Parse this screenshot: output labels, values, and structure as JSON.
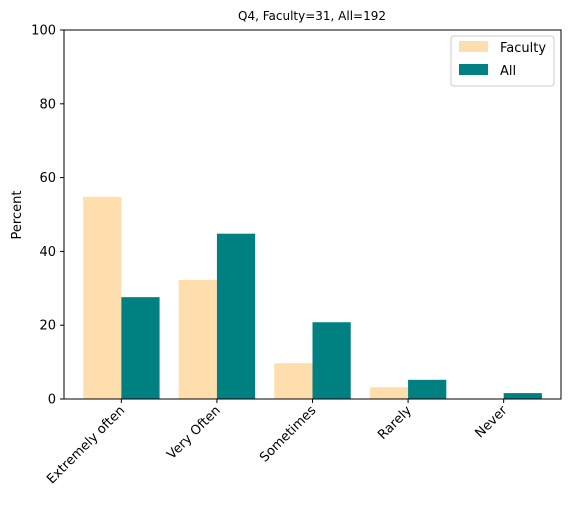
{
  "chart_data": {
    "type": "bar",
    "title": "Q4, Faculty=31, All=192",
    "xlabel": "",
    "ylabel": "Percent",
    "ylim": [
      0,
      100
    ],
    "yticks": [
      "0",
      "20",
      "40",
      "60",
      "80",
      "100"
    ],
    "categories": [
      "Extremely often",
      "Very Often",
      "Sometimes",
      "Rarely",
      "Never"
    ],
    "series": [
      {
        "name": "Faculty",
        "color": "#FFDEAD",
        "values": [
          54.8,
          32.3,
          9.7,
          3.2,
          0
        ]
      },
      {
        "name": "All",
        "color": "#008080",
        "values": [
          27.6,
          44.8,
          20.8,
          5.2,
          1.6
        ]
      }
    ],
    "legend_position": "top-right",
    "grid": false
  }
}
